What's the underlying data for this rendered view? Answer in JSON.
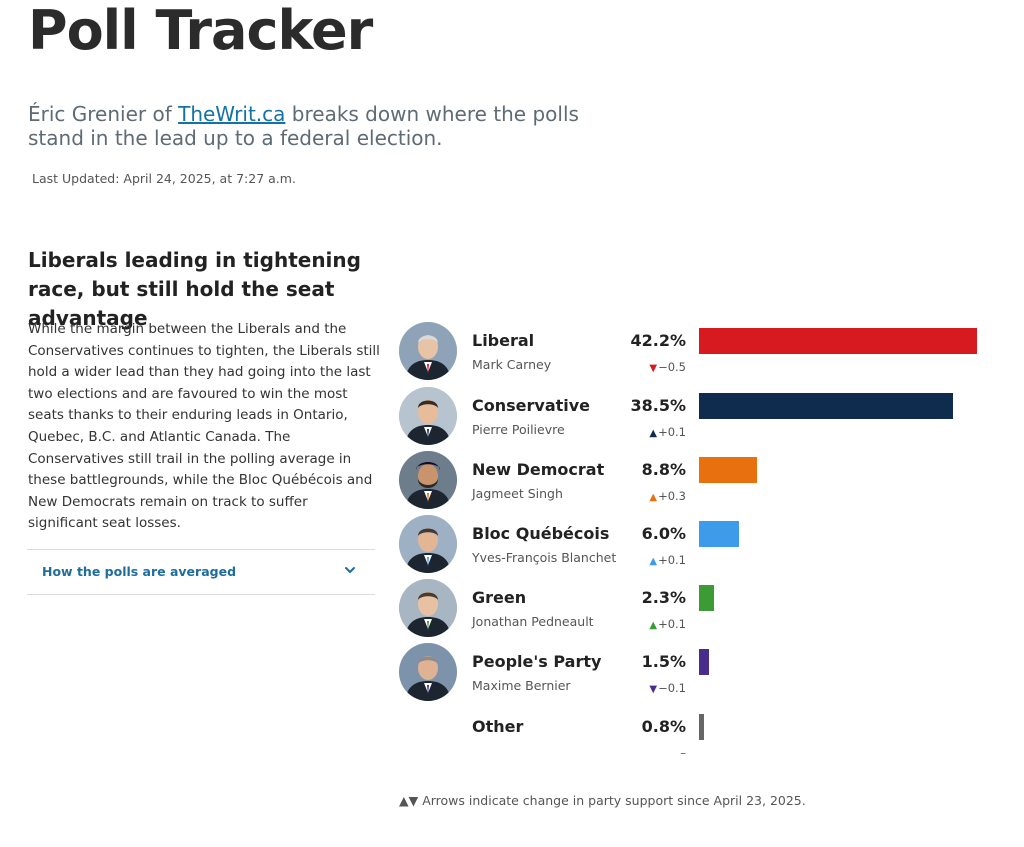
{
  "page": {
    "title": "Poll Tracker",
    "subtitle_before": "Éric Grenier of ",
    "subtitle_link": "TheWrit.ca",
    "subtitle_after": " breaks down where the polls stand in the lead up to a federal election.",
    "last_updated": "Last Updated: April 24, 2025, at 7:27 a.m."
  },
  "article": {
    "headline": "Liberals leading in tightening race, but still hold the seat advantage",
    "body": "While the margin between the Liberals and the Conservatives continues to tighten, the Liberals still hold a wider lead than they had going into the last two elections and are favoured to win the most seats thanks to their enduring leads in Ontario, Quebec, B.C. and Atlantic Canada. The Conservatives still trail in the polling average in these battlegrounds, while the Bloc Québécois and New Democrats remain on track to suffer significant seat losses.",
    "accordion_label": "How the polls are averaged"
  },
  "chart_data": {
    "type": "bar",
    "orientation": "horizontal",
    "xlim": [
      0,
      42.2
    ],
    "categories": [
      "Liberal",
      "Conservative",
      "New Democrat",
      "Bloc Québécois",
      "Green",
      "People's Party",
      "Other"
    ],
    "values": [
      42.2,
      38.5,
      8.8,
      6.0,
      2.3,
      1.5,
      0.8
    ],
    "value_labels": [
      "42.2%",
      "38.5%",
      "8.8%",
      "6.0%",
      "2.3%",
      "1.5%",
      "0.8%"
    ],
    "leaders": [
      "Mark Carney",
      "Pierre Poilievre",
      "Jagmeet Singh",
      "Yves-François Blanchet",
      "Jonathan Pedneault",
      "Maxime Bernier",
      ""
    ],
    "changes": [
      "−0.5",
      "+0.1",
      "+0.3",
      "+0.1",
      "+0.1",
      "−0.1",
      "–"
    ],
    "change_direction": [
      "down",
      "up",
      "up",
      "up",
      "up",
      "down",
      "none"
    ],
    "colors": [
      "#d71920",
      "#0f2c4f",
      "#e8700f",
      "#3d9be9",
      "#3d9b35",
      "#4a2c8a",
      "#666666"
    ],
    "footnote": "▲▼ Arrows indicate change in party support since April 23, 2025."
  }
}
